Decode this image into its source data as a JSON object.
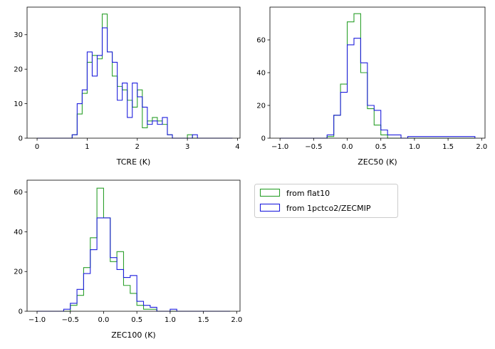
{
  "colors": {
    "flat10": "#2ca02c",
    "zecmip": "#1f1fdd",
    "axis": "#000000",
    "background": "#ffffff"
  },
  "legend": {
    "placement": "right of bottom-left panel",
    "entries": [
      {
        "key": "flat10",
        "label": "from flat10"
      },
      {
        "key": "zecmip",
        "label": "from 1pctco2/ZECMIP"
      }
    ]
  },
  "chart_data": [
    {
      "type": "histogram",
      "xlabel": "TCRE (K)",
      "ylabel": "",
      "xlim": [
        -0.2,
        4.05
      ],
      "ylim": [
        0,
        38
      ],
      "xticks": [
        0,
        1,
        2,
        3,
        4
      ],
      "yticks": [
        0,
        10,
        20,
        30
      ],
      "series": [
        {
          "key": "flat10",
          "color": "#2ca02c",
          "edges": [
            0.0,
            0.7,
            0.8,
            0.9,
            1.0,
            1.1,
            1.2,
            1.3,
            1.4,
            1.5,
            1.6,
            1.7,
            1.8,
            1.9,
            2.0,
            2.1,
            2.2,
            2.3,
            2.4,
            2.5,
            2.6,
            2.7,
            3.0,
            3.1,
            3.2,
            3.9
          ],
          "counts": [
            0,
            1,
            7,
            13,
            22,
            24,
            23,
            36,
            25,
            18,
            15,
            14,
            11,
            9,
            14,
            3,
            5,
            6,
            5,
            4,
            1,
            0,
            1,
            0,
            0
          ]
        },
        {
          "key": "zecmip",
          "color": "#1f1fdd",
          "edges": [
            0.0,
            0.7,
            0.8,
            0.9,
            1.0,
            1.1,
            1.2,
            1.3,
            1.4,
            1.5,
            1.6,
            1.7,
            1.8,
            1.9,
            2.0,
            2.1,
            2.2,
            2.3,
            2.4,
            2.5,
            2.6,
            2.7,
            3.0,
            3.1,
            3.2,
            3.9
          ],
          "counts": [
            0,
            1,
            10,
            14,
            25,
            18,
            24,
            32,
            25,
            22,
            11,
            16,
            6,
            16,
            12,
            9,
            4,
            5,
            4,
            6,
            1,
            0,
            0,
            1,
            0
          ]
        }
      ]
    },
    {
      "type": "histogram",
      "xlabel": "ZEC50 (K)",
      "ylabel": "",
      "xlim": [
        -1.15,
        2.05
      ],
      "ylim": [
        0,
        80
      ],
      "xticks": [
        -1.0,
        -0.5,
        0.0,
        0.5,
        1.0,
        1.5,
        2.0
      ],
      "yticks": [
        0,
        20,
        40,
        60
      ],
      "series": [
        {
          "key": "flat10",
          "color": "#2ca02c",
          "edges": [
            -1.0,
            -0.3,
            -0.2,
            -0.1,
            0.0,
            0.1,
            0.2,
            0.3,
            0.4,
            0.5,
            0.6,
            1.9
          ],
          "counts": [
            0,
            1,
            14,
            33,
            71,
            76,
            40,
            18,
            8,
            2,
            0
          ]
        },
        {
          "key": "zecmip",
          "color": "#1f1fdd",
          "edges": [
            -1.0,
            -0.3,
            -0.2,
            -0.1,
            0.0,
            0.1,
            0.2,
            0.3,
            0.4,
            0.5,
            0.6,
            0.8,
            0.9,
            1.9
          ],
          "counts": [
            0,
            2,
            14,
            28,
            57,
            61,
            46,
            20,
            17,
            5,
            2,
            0,
            1,
            0
          ]
        }
      ]
    },
    {
      "type": "histogram",
      "xlabel": "ZEC100 (K)",
      "ylabel": "",
      "xlim": [
        -1.15,
        2.05
      ],
      "ylim": [
        0,
        66
      ],
      "xticks": [
        -1.0,
        -0.5,
        0.0,
        0.5,
        1.0,
        1.5,
        2.0
      ],
      "yticks": [
        0,
        20,
        40,
        60
      ],
      "series": [
        {
          "key": "flat10",
          "color": "#2ca02c",
          "edges": [
            -1.0,
            -0.6,
            -0.5,
            -0.4,
            -0.3,
            -0.2,
            -0.1,
            0.0,
            0.1,
            0.2,
            0.3,
            0.4,
            0.5,
            0.6,
            0.7,
            0.8,
            1.9
          ],
          "counts": [
            0,
            0,
            3,
            8,
            22,
            37,
            62,
            47,
            25,
            30,
            13,
            9,
            3,
            1,
            1,
            0
          ]
        },
        {
          "key": "zecmip",
          "color": "#1f1fdd",
          "edges": [
            -1.0,
            -0.6,
            -0.5,
            -0.4,
            -0.3,
            -0.2,
            -0.1,
            0.0,
            0.1,
            0.2,
            0.3,
            0.4,
            0.5,
            0.6,
            0.7,
            0.8,
            1.0,
            1.1,
            1.9
          ],
          "counts": [
            0,
            1,
            4,
            11,
            19,
            31,
            47,
            47,
            27,
            21,
            17,
            18,
            5,
            3,
            2,
            0,
            1,
            0
          ]
        }
      ]
    }
  ]
}
